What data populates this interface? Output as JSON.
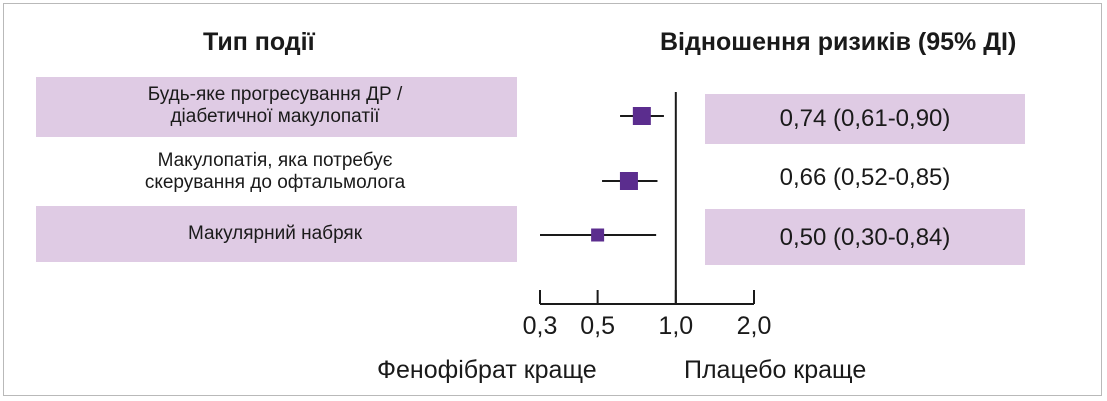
{
  "header": {
    "event_type": "Тип події",
    "hazard_ratio": "Відношення ризиків (95% ДІ)"
  },
  "rows": [
    {
      "line1": "Будь-яке прогресування ДР /",
      "line2": "діабетичної макулопатії",
      "ci_text": "0,74 (0,61-0,90)",
      "shaded": true
    },
    {
      "line1": "Макулопатія, яка потребує",
      "line2": "скерування до офтальмолога",
      "ci_text": "0,66 (0,52-0,85)",
      "shaded": false
    },
    {
      "line1": "Макулярний набряк",
      "line2": "",
      "ci_text": "0,50 (0,30-0,84)",
      "shaded": true
    }
  ],
  "footer": {
    "left": "Фенофібрат краще",
    "right": "Плацебо краще"
  },
  "colors": {
    "shade": "#dfcbe4",
    "marker": "#5b2d8e",
    "line": "#1a1a1a"
  },
  "chart_data": {
    "type": "forest",
    "scale": "log",
    "reference_line": 1.0,
    "xlim": [
      0.3,
      2.0
    ],
    "ticks": [
      0.3,
      0.5,
      1.0,
      2.0
    ],
    "tick_labels": [
      "0,3",
      "0,5",
      "1,0",
      "2,0"
    ],
    "points": [
      {
        "hr": 0.74,
        "lower": 0.61,
        "upper": 0.9
      },
      {
        "hr": 0.66,
        "lower": 0.52,
        "upper": 0.85
      },
      {
        "hr": 0.5,
        "lower": 0.3,
        "upper": 0.84
      }
    ]
  }
}
